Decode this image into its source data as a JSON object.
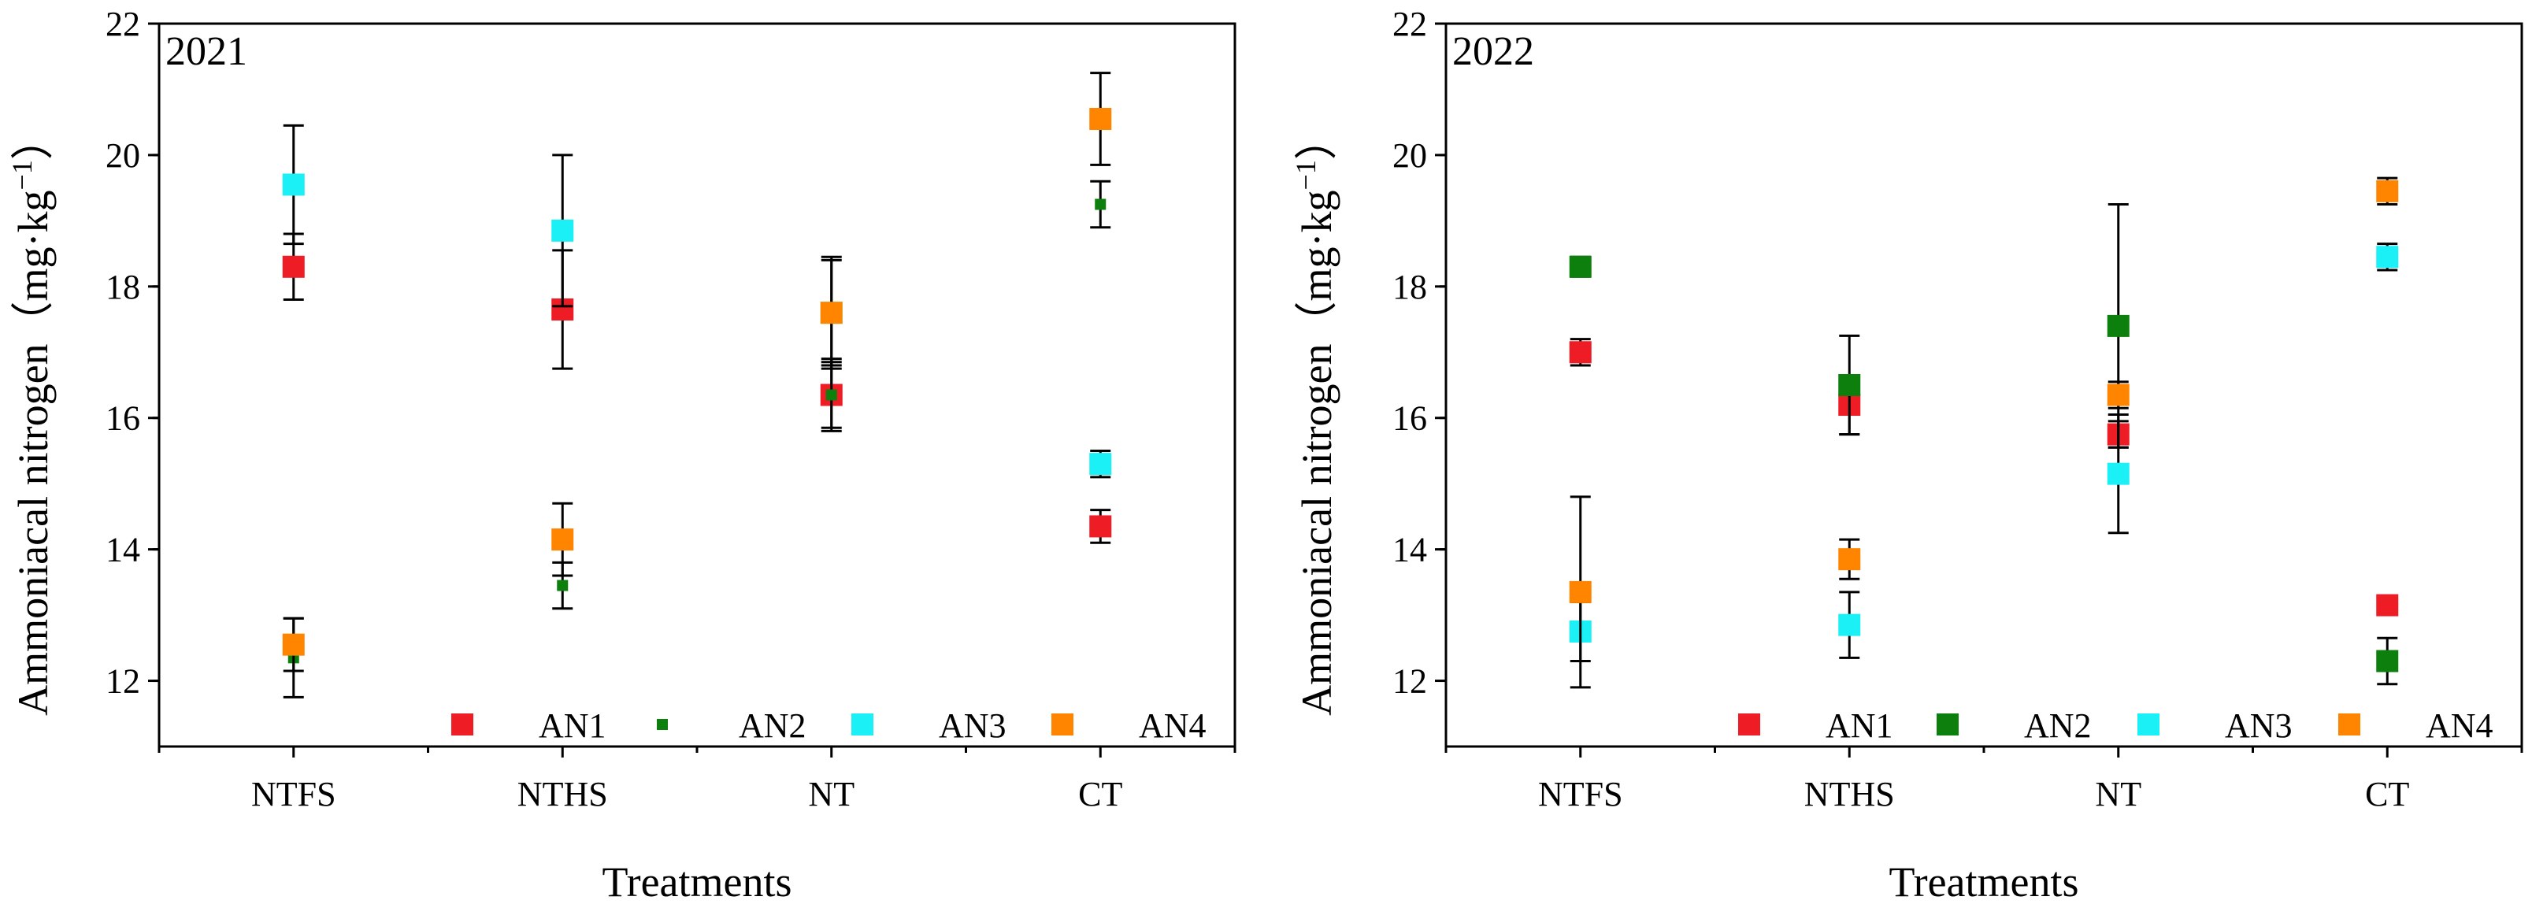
{
  "colors": {
    "AN1": "#ee1c25",
    "AN2": "#0c7f0c",
    "AN3": "#1af0f5",
    "AN4": "#ff8500"
  },
  "chart_data": [
    {
      "type": "scatter",
      "title": "2021",
      "xlabel": "Treatments",
      "ylabel": "Ammoniacal nitrogen（mg·kg",
      "ylabel_unit_sup": "−1",
      "ylabel_close": "）",
      "categories": [
        "NTFS",
        "NTHS",
        "NT",
        "CT"
      ],
      "ylim": [
        11,
        22
      ],
      "yticks": [
        12,
        14,
        16,
        18,
        20,
        22
      ],
      "legend_position": "bottom-right",
      "series": [
        {
          "name": "AN1",
          "marker": "square",
          "values": [
            18.3,
            17.65,
            16.35,
            14.35
          ],
          "errors": [
            0.5,
            0.9,
            0.55,
            0.25
          ]
        },
        {
          "name": "AN2",
          "marker": "small-square",
          "values": [
            12.35,
            13.45,
            16.35,
            19.25
          ],
          "errors": [
            0.6,
            0.35,
            0.5,
            0.35
          ]
        },
        {
          "name": "AN3",
          "marker": "square",
          "values": [
            19.55,
            18.85,
            17.6,
            15.3
          ],
          "errors": [
            0.9,
            1.15,
            0.8,
            0.2
          ]
        },
        {
          "name": "AN4",
          "marker": "square",
          "values": [
            12.55,
            14.15,
            17.6,
            20.55
          ],
          "errors": [
            0.4,
            0.55,
            0.85,
            0.7
          ]
        }
      ]
    },
    {
      "type": "scatter",
      "title": "2022",
      "xlabel": "Treatments",
      "ylabel": "Ammoniacal nitrogen（mg·kg",
      "ylabel_unit_sup": "−1",
      "ylabel_close": "）",
      "categories": [
        "NTFS",
        "NTHS",
        "NT",
        "CT"
      ],
      "ylim": [
        11,
        22
      ],
      "yticks": [
        12,
        14,
        16,
        18,
        20,
        22
      ],
      "legend_position": "bottom-right",
      "series": [
        {
          "name": "AN1",
          "marker": "square",
          "values": [
            17.0,
            16.2,
            15.75,
            13.15
          ],
          "errors": [
            0.2,
            0.45,
            0.2,
            0.1
          ]
        },
        {
          "name": "AN2",
          "marker": "square",
          "values": [
            18.3,
            16.5,
            17.4,
            12.3
          ],
          "errors": [
            0.15,
            0.75,
            1.85,
            0.35
          ]
        },
        {
          "name": "AN3",
          "marker": "square",
          "values": [
            12.75,
            12.85,
            15.15,
            18.45
          ],
          "errors": [
            0.45,
            0.5,
            0.9,
            0.2
          ]
        },
        {
          "name": "AN4",
          "marker": "square",
          "values": [
            13.35,
            13.85,
            16.35,
            19.45
          ],
          "errors": [
            1.45,
            0.3,
            0.2,
            0.2
          ]
        }
      ]
    }
  ]
}
